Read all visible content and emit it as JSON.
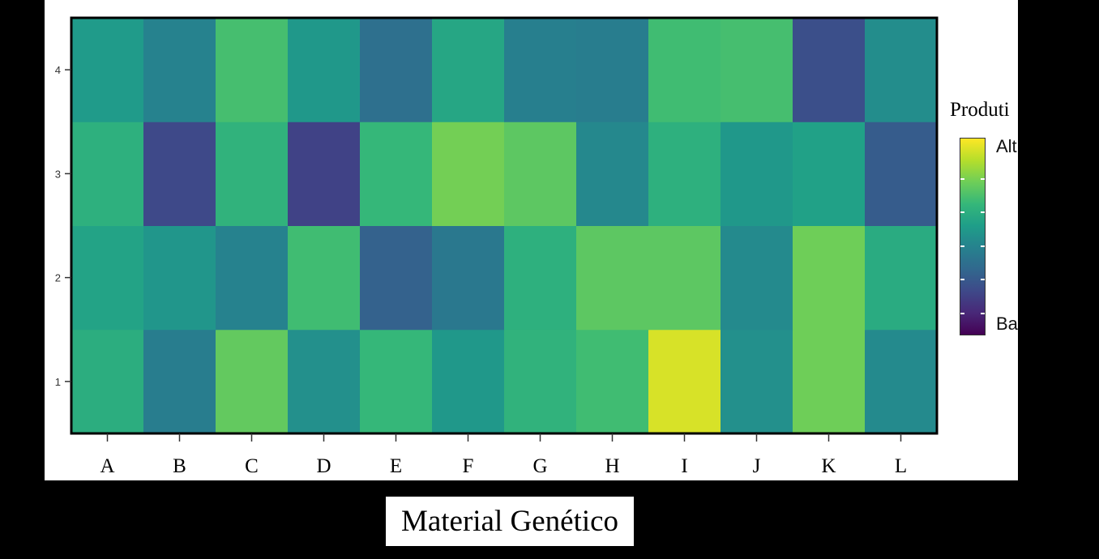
{
  "chart_data": {
    "type": "heatmap",
    "title": "",
    "xlabel": "Material Genético",
    "ylabel": "",
    "x_categories": [
      "A",
      "B",
      "C",
      "D",
      "E",
      "F",
      "G",
      "H",
      "I",
      "J",
      "K",
      "L"
    ],
    "y_categories": [
      "1",
      "2",
      "3",
      "4"
    ],
    "values": [
      [
        0.56,
        0.38,
        0.68,
        0.45,
        0.6,
        0.48,
        0.58,
        0.62,
        0.92,
        0.45,
        0.7,
        0.43
      ],
      [
        0.52,
        0.47,
        0.4,
        0.62,
        0.28,
        0.36,
        0.57,
        0.67,
        0.67,
        0.43,
        0.7,
        0.55
      ],
      [
        0.57,
        0.2,
        0.58,
        0.18,
        0.6,
        0.71,
        0.67,
        0.42,
        0.57,
        0.48,
        0.51,
        0.26
      ],
      [
        0.49,
        0.4,
        0.63,
        0.48,
        0.33,
        0.53,
        0.39,
        0.38,
        0.62,
        0.63,
        0.22,
        0.44
      ]
    ],
    "colorscale": "viridis",
    "legend": {
      "title": "Produti",
      "high_label": "Alt",
      "low_label": "Ba",
      "placement": "right"
    },
    "grid": false
  }
}
